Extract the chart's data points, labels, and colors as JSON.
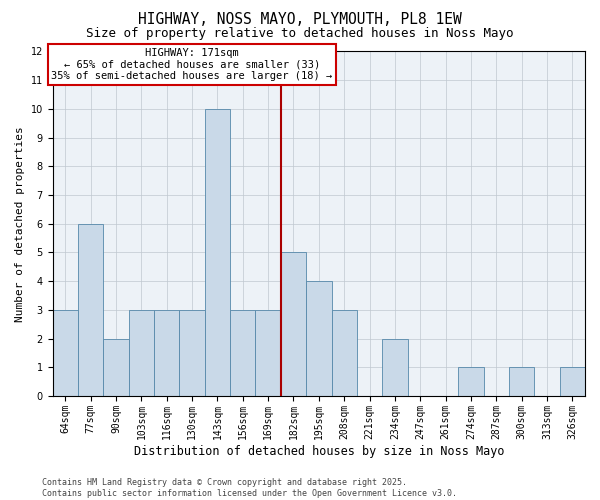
{
  "title": "HIGHWAY, NOSS MAYO, PLYMOUTH, PL8 1EW",
  "subtitle": "Size of property relative to detached houses in Noss Mayo",
  "xlabel": "Distribution of detached houses by size in Noss Mayo",
  "ylabel": "Number of detached properties",
  "categories": [
    "64sqm",
    "77sqm",
    "90sqm",
    "103sqm",
    "116sqm",
    "130sqm",
    "143sqm",
    "156sqm",
    "169sqm",
    "182sqm",
    "195sqm",
    "208sqm",
    "221sqm",
    "234sqm",
    "247sqm",
    "261sqm",
    "274sqm",
    "287sqm",
    "300sqm",
    "313sqm",
    "326sqm"
  ],
  "values": [
    3,
    6,
    2,
    3,
    3,
    3,
    10,
    3,
    3,
    5,
    4,
    3,
    0,
    2,
    0,
    0,
    1,
    0,
    1,
    0,
    1
  ],
  "bar_color": "#c9d9e8",
  "bar_edge_color": "#5588aa",
  "vline_index": 8.5,
  "highlight_label": "HIGHWAY: 171sqm",
  "highlight_pct1": "← 65% of detached houses are smaller (33)",
  "highlight_pct2": "35% of semi-detached houses are larger (18) →",
  "annotation_box_color": "#cc0000",
  "vline_color": "#aa0000",
  "ylim": [
    0,
    12
  ],
  "yticks": [
    0,
    1,
    2,
    3,
    4,
    5,
    6,
    7,
    8,
    9,
    10,
    11,
    12
  ],
  "footer1": "Contains HM Land Registry data © Crown copyright and database right 2025.",
  "footer2": "Contains public sector information licensed under the Open Government Licence v3.0.",
  "bg_color": "#edf2f7",
  "grid_color": "#c0c8d0",
  "title_fontsize": 10.5,
  "subtitle_fontsize": 9,
  "ylabel_fontsize": 8,
  "xlabel_fontsize": 8.5,
  "tick_fontsize": 7,
  "annot_fontsize": 7.5,
  "footer_fontsize": 6
}
